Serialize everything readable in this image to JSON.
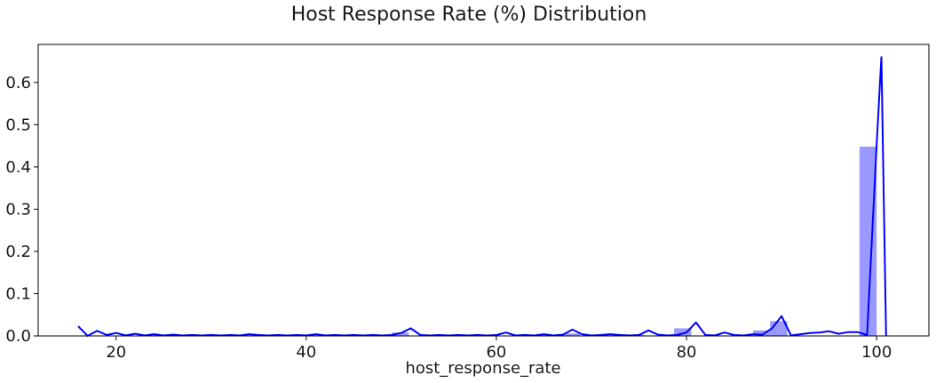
{
  "chart_data": {
    "type": "bar",
    "title": "Host Response Rate (%) Distribution",
    "xlabel": "host_response_rate",
    "ylabel": "",
    "xlim": [
      11.8,
      105.5
    ],
    "ylim": [
      0,
      0.69
    ],
    "grid": false,
    "xticks": [
      "20",
      "40",
      "60",
      "80",
      "100"
    ],
    "yticks": [
      "0.0",
      "0.1",
      "0.2",
      "0.3",
      "0.4",
      "0.5",
      "0.6"
    ],
    "colors": {
      "bars": "#0000ff",
      "bar_opacity": 0.4,
      "line": "#0000ff",
      "axes": "#000000"
    },
    "histogram": [
      {
        "x0": 49.0,
        "x1": 50.8,
        "value": 0.008
      },
      {
        "x0": 67.0,
        "x1": 68.8,
        "value": 0.006
      },
      {
        "x0": 73.7,
        "x1": 75.5,
        "value": 0.003
      },
      {
        "x0": 78.7,
        "x1": 80.5,
        "value": 0.018
      },
      {
        "x0": 87.0,
        "x1": 88.8,
        "value": 0.013
      },
      {
        "x0": 88.8,
        "x1": 90.6,
        "value": 0.035
      },
      {
        "x0": 98.2,
        "x1": 100.0,
        "value": 0.448
      }
    ],
    "density": {
      "x": [
        16,
        17,
        18,
        19,
        20,
        21,
        22,
        23,
        24,
        25,
        26,
        27,
        28,
        29,
        30,
        31,
        32,
        33,
        34,
        35,
        36,
        37,
        38,
        39,
        40,
        41,
        42,
        43,
        44,
        45,
        46,
        47,
        48,
        49,
        50,
        51,
        52,
        53,
        54,
        55,
        56,
        57,
        58,
        59,
        60,
        61,
        62,
        63,
        64,
        65,
        66,
        67,
        68,
        69,
        70,
        71,
        72,
        73,
        74,
        75,
        76,
        77,
        78,
        79,
        80,
        81,
        82,
        83,
        84,
        85,
        86,
        87,
        88,
        89,
        90,
        91,
        92,
        93,
        94,
        95,
        96,
        97,
        98,
        99,
        100,
        100.5,
        101
      ],
      "y": [
        0.023,
        0.0,
        0.012,
        0.002,
        0.007,
        0.001,
        0.005,
        0.001,
        0.004,
        0.001,
        0.003,
        0.001,
        0.002,
        0.001,
        0.002,
        0.001,
        0.002,
        0.001,
        0.004,
        0.002,
        0.001,
        0.002,
        0.001,
        0.002,
        0.001,
        0.004,
        0.001,
        0.002,
        0.001,
        0.002,
        0.001,
        0.002,
        0.001,
        0.002,
        0.007,
        0.018,
        0.002,
        0.001,
        0.002,
        0.001,
        0.002,
        0.001,
        0.002,
        0.001,
        0.002,
        0.008,
        0.001,
        0.002,
        0.001,
        0.004,
        0.001,
        0.003,
        0.015,
        0.004,
        0.001,
        0.002,
        0.004,
        0.002,
        0.001,
        0.002,
        0.013,
        0.003,
        0.001,
        0.002,
        0.008,
        0.032,
        0.002,
        0.001,
        0.008,
        0.002,
        0.001,
        0.004,
        0.003,
        0.018,
        0.047,
        0.001,
        0.004,
        0.007,
        0.008,
        0.011,
        0.005,
        0.009,
        0.009,
        0.002,
        0.45,
        0.66,
        0.0
      ]
    }
  }
}
